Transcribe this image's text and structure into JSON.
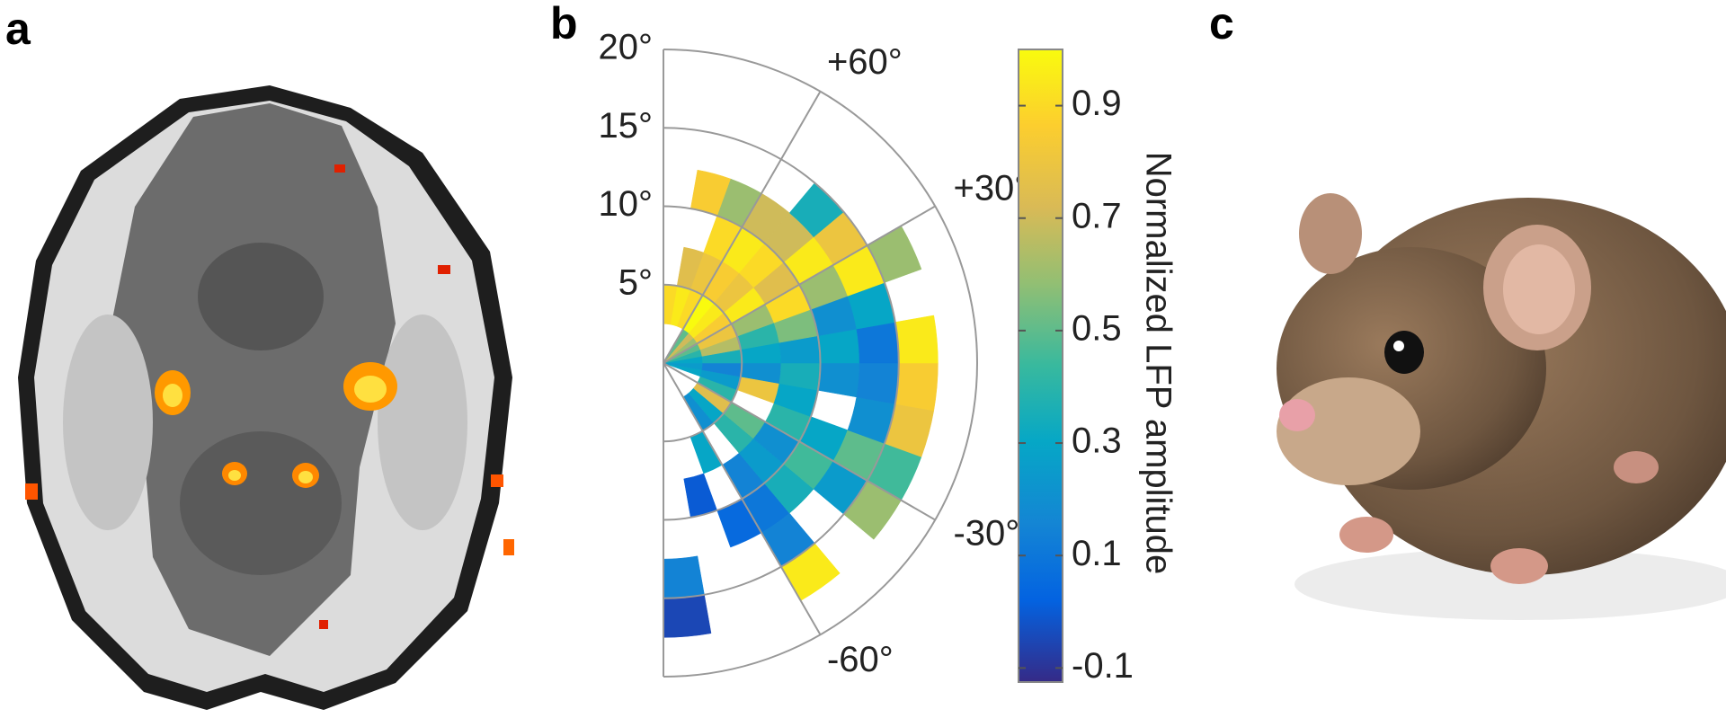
{
  "panel_labels": [
    "a",
    "b",
    "c"
  ],
  "chart_data": {
    "type": "polar_heatmap",
    "rlim": [
      0,
      20
    ],
    "rticks": [
      {
        "value": 5,
        "label": "5°"
      },
      {
        "value": 10,
        "label": "10°"
      },
      {
        "value": 15,
        "label": "15°"
      },
      {
        "value": 20,
        "label": "20°"
      }
    ],
    "thetaticks": [
      {
        "value": 60,
        "label": "+60°"
      },
      {
        "value": 30,
        "label": "+30°"
      },
      {
        "value": -30,
        "label": "-30°"
      },
      {
        "value": -60,
        "label": "-60°"
      }
    ],
    "theta_edges": [
      -90,
      -80,
      -70,
      -60,
      -50,
      -40,
      -30,
      -20,
      -10,
      0,
      10,
      20,
      30,
      40,
      50,
      60,
      70,
      80,
      90
    ],
    "r_edges": [
      0,
      2.5,
      5,
      7.5,
      10,
      12.5,
      15,
      17.5
    ],
    "values": [
      [
        null,
        null,
        null,
        null,
        null,
        0.15,
        -0.05
      ],
      [
        null,
        null,
        null,
        0.0,
        null,
        null,
        null
      ],
      [
        null,
        null,
        0.3,
        null,
        0.05,
        null,
        null
      ],
      [
        null,
        0.2,
        null,
        0.15,
        0.1,
        0.15,
        0.95
      ],
      [
        null,
        0.3,
        0.4,
        0.25,
        0.35,
        null,
        null
      ],
      [
        null,
        0.75,
        0.5,
        0.2,
        0.45,
        0.25,
        0.6
      ],
      [
        null,
        0.4,
        null,
        0.4,
        0.3,
        0.5,
        0.45
      ],
      [
        0.3,
        0.25,
        0.8,
        0.3,
        null,
        0.2,
        0.8
      ],
      [
        0.25,
        0.15,
        0.2,
        0.35,
        0.2,
        0.15,
        0.85
      ],
      [
        0.3,
        0.35,
        0.3,
        0.25,
        0.3,
        0.1,
        0.95
      ],
      [
        0.4,
        0.65,
        0.4,
        0.55,
        0.2,
        0.3,
        null
      ],
      [
        0.5,
        0.8,
        0.6,
        0.9,
        0.6,
        0.95,
        0.6
      ],
      [
        0.6,
        0.85,
        0.95,
        0.75,
        0.95,
        0.8,
        null
      ],
      [
        0.7,
        0.95,
        0.8,
        0.9,
        0.7,
        0.35,
        null
      ],
      [
        0.5,
        1.0,
        0.85,
        0.95,
        0.7,
        null,
        null
      ],
      [
        null,
        0.9,
        0.8,
        0.9,
        0.6,
        null,
        null
      ],
      [
        null,
        0.95,
        0.75,
        null,
        0.85,
        null,
        null
      ],
      [
        null,
        0.9,
        null,
        null,
        null,
        null,
        null
      ]
    ],
    "colormap": "parula",
    "colorbar": {
      "label": "Normalized LFP amplitude",
      "clim": [
        -0.125,
        1.0
      ],
      "ticks": [
        0.9,
        0.7,
        0.5,
        0.3,
        0.1,
        -0.1
      ]
    }
  }
}
